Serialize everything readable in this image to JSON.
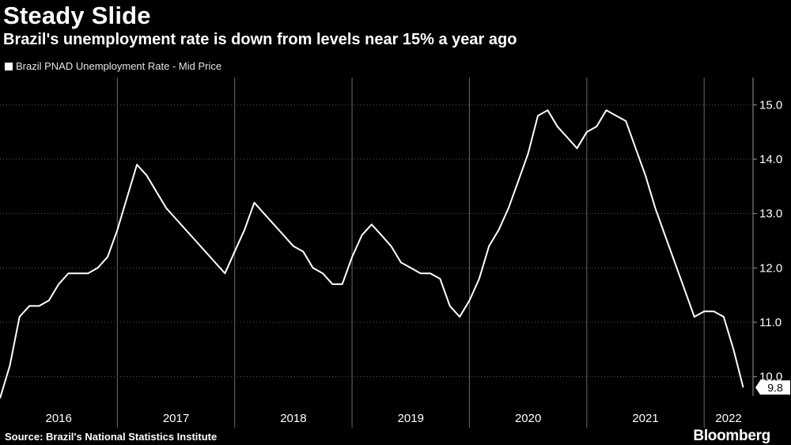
{
  "title": "Steady Slide",
  "subtitle": "Brazil's unemployment rate is down from levels near 15% a year ago",
  "source": "Source: Brazil's National Statistics Institute",
  "brand": "Bloomberg",
  "colors": {
    "background": "#000000",
    "line": "#ffffff",
    "grid": "#555555"
  },
  "chart_data": {
    "type": "line",
    "series": [
      {
        "name": "Brazil PNAD Unemployment Rate - Mid Price",
        "x": [
          "2016-01",
          "2016-02",
          "2016-03",
          "2016-04",
          "2016-05",
          "2016-06",
          "2016-07",
          "2016-08",
          "2016-09",
          "2016-10",
          "2016-11",
          "2016-12",
          "2017-01",
          "2017-02",
          "2017-03",
          "2017-04",
          "2017-05",
          "2017-06",
          "2017-07",
          "2017-08",
          "2017-09",
          "2017-10",
          "2017-11",
          "2017-12",
          "2018-01",
          "2018-02",
          "2018-03",
          "2018-04",
          "2018-05",
          "2018-06",
          "2018-07",
          "2018-08",
          "2018-09",
          "2018-10",
          "2018-11",
          "2018-12",
          "2019-01",
          "2019-02",
          "2019-03",
          "2019-04",
          "2019-05",
          "2019-06",
          "2019-07",
          "2019-08",
          "2019-09",
          "2019-10",
          "2019-11",
          "2019-12",
          "2020-01",
          "2020-02",
          "2020-03",
          "2020-04",
          "2020-05",
          "2020-06",
          "2020-07",
          "2020-08",
          "2020-09",
          "2020-10",
          "2020-11",
          "2020-12",
          "2021-01",
          "2021-02",
          "2021-03",
          "2021-04",
          "2021-05",
          "2021-06",
          "2021-07",
          "2021-08",
          "2021-09",
          "2021-10",
          "2021-11",
          "2021-12",
          "2022-01",
          "2022-02",
          "2022-03",
          "2022-04",
          "2022-05"
        ],
        "values": [
          9.6,
          10.2,
          11.1,
          11.3,
          11.3,
          11.4,
          11.7,
          11.9,
          11.9,
          11.9,
          12.0,
          12.2,
          12.7,
          13.3,
          13.9,
          13.7,
          13.4,
          13.1,
          12.9,
          12.7,
          12.5,
          12.3,
          12.1,
          11.9,
          12.3,
          12.7,
          13.2,
          13.0,
          12.8,
          12.6,
          12.4,
          12.3,
          12.0,
          11.9,
          11.7,
          11.7,
          12.2,
          12.6,
          12.8,
          12.6,
          12.4,
          12.1,
          12.0,
          11.9,
          11.9,
          11.8,
          11.3,
          11.1,
          11.4,
          11.8,
          12.4,
          12.7,
          13.1,
          13.6,
          14.1,
          14.8,
          14.9,
          14.6,
          14.4,
          14.2,
          14.5,
          14.6,
          14.9,
          14.8,
          14.7,
          14.2,
          13.7,
          13.1,
          12.6,
          12.1,
          11.6,
          11.1,
          11.2,
          11.2,
          11.1,
          10.5,
          9.8
        ]
      }
    ],
    "x_range": [
      "2016-01",
      "2022-06"
    ],
    "ylim": [
      9.5,
      15.5
    ],
    "yticks": [
      10.0,
      11.0,
      12.0,
      13.0,
      14.0,
      15.0
    ],
    "ytick_labels": [
      "10.0",
      "11.0",
      "12.0",
      "13.0",
      "14.0",
      "15.0"
    ],
    "year_labels": [
      "2016",
      "2017",
      "2018",
      "2019",
      "2020",
      "2021",
      "2022"
    ],
    "last_value_label": "9.8",
    "axis_side": "right",
    "legend_position": "top-left"
  }
}
